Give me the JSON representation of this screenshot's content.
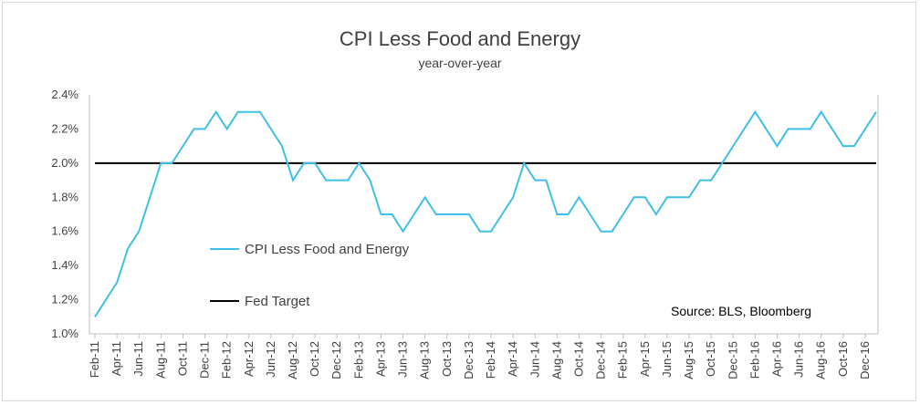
{
  "chart_data": {
    "type": "line",
    "title": "CPI Less Food and Energy",
    "subtitle": "year-over-year",
    "ylim": [
      1.0,
      2.4
    ],
    "y_ticks": [
      "1.0%",
      "1.2%",
      "1.4%",
      "1.6%",
      "1.8%",
      "2.0%",
      "2.2%",
      "2.4%"
    ],
    "y_tick_values": [
      1.0,
      1.2,
      1.4,
      1.6,
      1.8,
      2.0,
      2.2,
      2.4
    ],
    "x_tick_labels": [
      "Feb-11",
      "Apr-11",
      "Jun-11",
      "Aug-11",
      "Oct-11",
      "Dec-11",
      "Feb-12",
      "Apr-12",
      "Jun-12",
      "Aug-12",
      "Oct-12",
      "Dec-12",
      "Feb-13",
      "Apr-13",
      "Jun-13",
      "Aug-13",
      "Oct-13",
      "Dec-13",
      "Feb-14",
      "Apr-14",
      "Jun-14",
      "Aug-14",
      "Oct-14",
      "Dec-14",
      "Feb-15",
      "Apr-15",
      "Jun-15",
      "Aug-15",
      "Oct-15",
      "Dec-15",
      "Feb-16",
      "Apr-16",
      "Jun-16",
      "Aug-16",
      "Oct-16",
      "Dec-16"
    ],
    "x": [
      "Feb-11",
      "Mar-11",
      "Apr-11",
      "May-11",
      "Jun-11",
      "Jul-11",
      "Aug-11",
      "Sep-11",
      "Oct-11",
      "Nov-11",
      "Dec-11",
      "Jan-12",
      "Feb-12",
      "Mar-12",
      "Apr-12",
      "May-12",
      "Jun-12",
      "Jul-12",
      "Aug-12",
      "Sep-12",
      "Oct-12",
      "Nov-12",
      "Dec-12",
      "Jan-13",
      "Feb-13",
      "Mar-13",
      "Apr-13",
      "May-13",
      "Jun-13",
      "Jul-13",
      "Aug-13",
      "Sep-13",
      "Oct-13",
      "Nov-13",
      "Dec-13",
      "Jan-14",
      "Feb-14",
      "Mar-14",
      "Apr-14",
      "May-14",
      "Jun-14",
      "Jul-14",
      "Aug-14",
      "Sep-14",
      "Oct-14",
      "Nov-14",
      "Dec-14",
      "Jan-15",
      "Feb-15",
      "Mar-15",
      "Apr-15",
      "May-15",
      "Jun-15",
      "Jul-15",
      "Aug-15",
      "Sep-15",
      "Oct-15",
      "Nov-15",
      "Dec-15",
      "Jan-16",
      "Feb-16",
      "Mar-16",
      "Apr-16",
      "May-16",
      "Jun-16",
      "Jul-16",
      "Aug-16",
      "Sep-16",
      "Oct-16",
      "Nov-16",
      "Dec-16",
      "Jan-17"
    ],
    "series": [
      {
        "name": "CPI Less Food and Energy",
        "color": "#3fbfe8",
        "values": [
          1.1,
          1.2,
          1.3,
          1.5,
          1.6,
          1.8,
          2.0,
          2.0,
          2.1,
          2.2,
          2.2,
          2.3,
          2.2,
          2.3,
          2.3,
          2.3,
          2.2,
          2.1,
          1.9,
          2.0,
          2.0,
          1.9,
          1.9,
          1.9,
          2.0,
          1.9,
          1.7,
          1.7,
          1.6,
          1.7,
          1.8,
          1.7,
          1.7,
          1.7,
          1.7,
          1.6,
          1.6,
          1.7,
          1.8,
          2.0,
          1.9,
          1.9,
          1.7,
          1.7,
          1.8,
          1.7,
          1.6,
          1.6,
          1.7,
          1.8,
          1.8,
          1.7,
          1.8,
          1.8,
          1.8,
          1.9,
          1.9,
          2.0,
          2.1,
          2.2,
          2.3,
          2.2,
          2.1,
          2.2,
          2.2,
          2.2,
          2.3,
          2.2,
          2.1,
          2.1,
          2.2,
          2.3
        ]
      },
      {
        "name": "Fed Target",
        "color": "#000000",
        "constant": 2.0
      }
    ],
    "annotation": "Source: BLS, Bloomberg",
    "legend_placement": "center-left",
    "grid": false
  }
}
